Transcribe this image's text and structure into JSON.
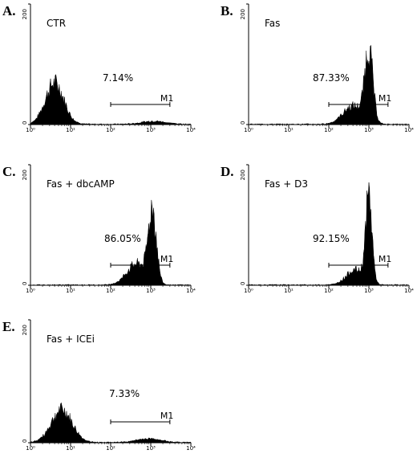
{
  "chart_data": [
    {
      "type": "area",
      "panel": "A.",
      "label": "CTR",
      "percent": "7.14%",
      "gate": {
        "label": "M1",
        "range": [
          100,
          3000
        ]
      },
      "x_scale": "log",
      "xlim": [
        1,
        10000
      ],
      "x_ticks": [
        "10⁰",
        "10¹",
        "10²",
        "10³",
        "10⁴"
      ],
      "ylim": [
        0,
        200
      ],
      "y_ticks": [
        "0",
        "200"
      ],
      "peaks": [
        {
          "center": 4,
          "height": 68,
          "spread": 0.23
        },
        {
          "center": 1200,
          "height": 5,
          "spread": 0.3
        }
      ]
    },
    {
      "type": "area",
      "panel": "B.",
      "label": "Fas",
      "percent": "87.33%",
      "gate": {
        "label": "M1",
        "range": [
          100,
          3000
        ]
      },
      "x_scale": "log",
      "xlim": [
        1,
        10000
      ],
      "x_ticks": [
        "10⁰",
        "10¹",
        "10²",
        "10³",
        "10⁴"
      ],
      "ylim": [
        0,
        200
      ],
      "y_ticks": [
        "0",
        "200"
      ],
      "peaks": [
        {
          "center": 1000,
          "height": 118,
          "spread": 0.1
        },
        {
          "center": 400,
          "height": 30,
          "spread": 0.25
        }
      ]
    },
    {
      "type": "area",
      "panel": "C.",
      "label": "Fas + dbcAMP",
      "percent": "86.05%",
      "gate": {
        "label": "M1",
        "range": [
          100,
          3000
        ]
      },
      "x_scale": "log",
      "xlim": [
        1,
        10000
      ],
      "x_ticks": [
        "10⁰",
        "10¹",
        "10²",
        "10³",
        "10⁴"
      ],
      "ylim": [
        0,
        200
      ],
      "y_ticks": [
        "0",
        "200"
      ],
      "peaks": [
        {
          "center": 1100,
          "height": 118,
          "spread": 0.1
        },
        {
          "center": 450,
          "height": 35,
          "spread": 0.25
        }
      ]
    },
    {
      "type": "area",
      "panel": "D.",
      "label": "Fas + D3",
      "percent": "92.15%",
      "gate": {
        "label": "M1",
        "range": [
          100,
          3000
        ]
      },
      "x_scale": "log",
      "xlim": [
        1,
        10000
      ],
      "x_ticks": [
        "10⁰",
        "10¹",
        "10²",
        "10³",
        "10⁴"
      ],
      "ylim": [
        0,
        200
      ],
      "y_ticks": [
        "0",
        "200"
      ],
      "peaks": [
        {
          "center": 1000,
          "height": 140,
          "spread": 0.08
        },
        {
          "center": 450,
          "height": 25,
          "spread": 0.22
        }
      ]
    },
    {
      "type": "area",
      "panel": "E.",
      "label": "Fas + ICEi",
      "percent": "7.33%",
      "gate": {
        "label": "M1",
        "range": [
          100,
          3000
        ]
      },
      "x_scale": "log",
      "xlim": [
        1,
        10000
      ],
      "x_ticks": [
        "10⁰",
        "10¹",
        "10²",
        "10³",
        "10⁴"
      ],
      "ylim": [
        0,
        200
      ],
      "y_ticks": [
        "0",
        "200"
      ],
      "peaks": [
        {
          "center": 6,
          "height": 52,
          "spread": 0.26
        },
        {
          "center": 900,
          "height": 6,
          "spread": 0.3
        }
      ]
    }
  ]
}
